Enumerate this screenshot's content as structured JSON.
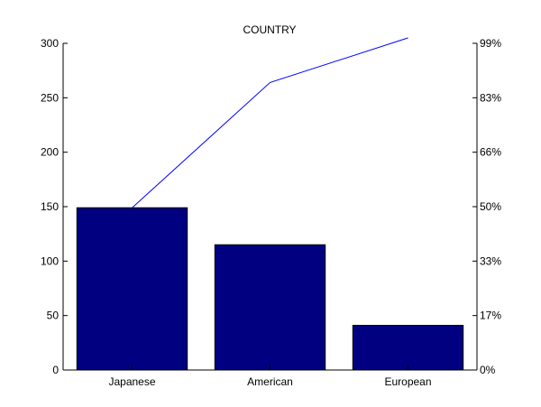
{
  "chart_data": {
    "type": "bar",
    "title": "COUNTRY",
    "categories": [
      "Japanese",
      "American",
      "European"
    ],
    "values": [
      149,
      115,
      41
    ],
    "cumulative": [
      149,
      264,
      305
    ],
    "ylim": [
      0,
      300
    ],
    "yticks": [
      0,
      50,
      100,
      150,
      200,
      250,
      300
    ],
    "right_ticks": [
      "0%",
      "17%",
      "33%",
      "50%",
      "66%",
      "83%",
      "99%"
    ],
    "grid": false,
    "colors": {
      "bar": "#000080",
      "line": "#0000ff",
      "axis": "#000000"
    }
  }
}
